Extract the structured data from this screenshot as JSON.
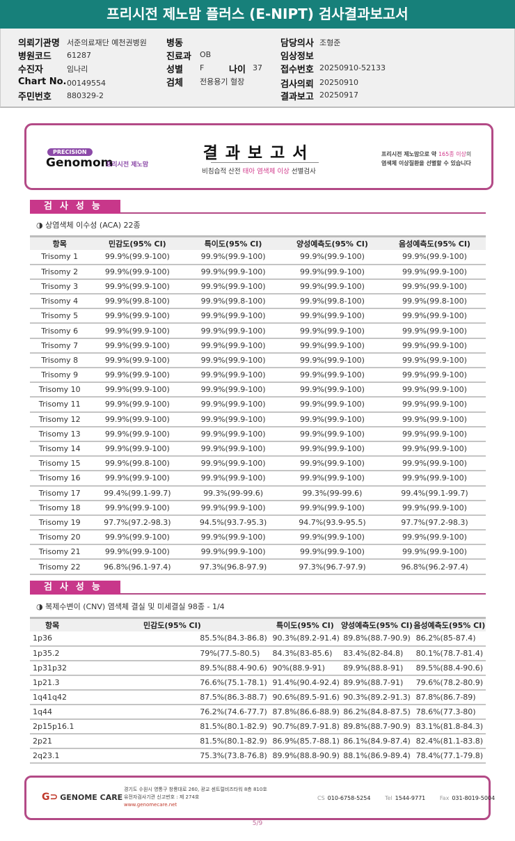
{
  "title": "프리시전 제노맘 플러스 (E-NIPT) 검사결과보고서",
  "info": {
    "hospital_label": "의뢰기관명",
    "hospital": "서준의료재단 예천권병원",
    "code_label": "병원코드",
    "code": "61287",
    "patient_label": "수진자",
    "patient": "임나리",
    "chart_label": "Chart No.",
    "chart": "00149554",
    "rrn_label": "주민번호",
    "rrn": "880329-2",
    "ward_label": "병동",
    "ward": "",
    "dept_label": "진료과",
    "dept": "OB",
    "sex_label": "성별",
    "sex": "F",
    "age_label": "나이",
    "age": "37",
    "specimen_label": "검체",
    "specimen": "전용용기 혈장",
    "doctor_label": "담당의사",
    "doctor": "조형준",
    "clinical_label": "임상정보",
    "clinical": "",
    "receipt_label": "접수번호",
    "receipt": "20250910-52133",
    "request_label": "검사의뢰",
    "request": "20250910",
    "report_label": "결과보고",
    "report": "20250917"
  },
  "banner": {
    "precision": "PRECISION",
    "brand": "Genomom",
    "brand_kr": "프리시전 제노맘",
    "title": "결과보고서",
    "sub_a": "비침습적 산전 ",
    "sub_b": "태아 염색체 이상",
    "sub_c": " 선별검사",
    "right_a": "프리시전 제노맘으로 약 ",
    "right_b": "165종 이상",
    "right_c": "의",
    "right_d": "염색체 이상질환을 선별할 수 있습니다"
  },
  "colors": {
    "teal": "#17807a",
    "magenta": "#b34a86",
    "pink": "#c8378a"
  },
  "section1": {
    "tab": "검사성능",
    "subtitle": "◑ 상염색체 이수성 (ACA) 22종",
    "headers": [
      "항목",
      "민감도(95% CI)",
      "특이도(95% CI)",
      "양성예측도(95% CI)",
      "음성예측도(95% CI)"
    ],
    "rows": [
      [
        "Trisomy 1",
        "99.9%(99.9-100)",
        "99.9%(99.9-100)",
        "99.9%(99.9-100)",
        "99.9%(99.9-100)"
      ],
      [
        "Trisomy 2",
        "99.9%(99.9-100)",
        "99.9%(99.9-100)",
        "99.9%(99.9-100)",
        "99.9%(99.9-100)"
      ],
      [
        "Trisomy 3",
        "99.9%(99.9-100)",
        "99.9%(99.9-100)",
        "99.9%(99.9-100)",
        "99.9%(99.9-100)"
      ],
      [
        "Trisomy 4",
        "99.9%(99.8-100)",
        "99.9%(99.8-100)",
        "99.9%(99.8-100)",
        "99.9%(99.8-100)"
      ],
      [
        "Trisomy 5",
        "99.9%(99.9-100)",
        "99.9%(99.9-100)",
        "99.9%(99.9-100)",
        "99.9%(99.9-100)"
      ],
      [
        "Trisomy 6",
        "99.9%(99.9-100)",
        "99.9%(99.9-100)",
        "99.9%(99.9-100)",
        "99.9%(99.9-100)"
      ],
      [
        "Trisomy 7",
        "99.9%(99.9-100)",
        "99.9%(99.9-100)",
        "99.9%(99.9-100)",
        "99.9%(99.9-100)"
      ],
      [
        "Trisomy 8",
        "99.9%(99.9-100)",
        "99.9%(99.9-100)",
        "99.9%(99.9-100)",
        "99.9%(99.9-100)"
      ],
      [
        "Trisomy 9",
        "99.9%(99.9-100)",
        "99.9%(99.9-100)",
        "99.9%(99.9-100)",
        "99.9%(99.9-100)"
      ],
      [
        "Trisomy 10",
        "99.9%(99.9-100)",
        "99.9%(99.9-100)",
        "99.9%(99.9-100)",
        "99.9%(99.9-100)"
      ],
      [
        "Trisomy 11",
        "99.9%(99.9-100)",
        "99.9%(99.9-100)",
        "99.9%(99.9-100)",
        "99.9%(99.9-100)"
      ],
      [
        "Trisomy 12",
        "99.9%(99.9-100)",
        "99.9%(99.9-100)",
        "99.9%(99.9-100)",
        "99.9%(99.9-100)"
      ],
      [
        "Trisomy 13",
        "99.9%(99.9-100)",
        "99.9%(99.9-100)",
        "99.9%(99.9-100)",
        "99.9%(99.9-100)"
      ],
      [
        "Trisomy 14",
        "99.9%(99.9-100)",
        "99.9%(99.9-100)",
        "99.9%(99.9-100)",
        "99.9%(99.9-100)"
      ],
      [
        "Trisomy 15",
        "99.9%(99.8-100)",
        "99.9%(99.9-100)",
        "99.9%(99.9-100)",
        "99.9%(99.9-100)"
      ],
      [
        "Trisomy 16",
        "99.9%(99.9-100)",
        "99.9%(99.9-100)",
        "99.9%(99.9-100)",
        "99.9%(99.9-100)"
      ],
      [
        "Trisomy 17",
        "99.4%(99.1-99.7)",
        "99.3%(99-99.6)",
        "99.3%(99-99.6)",
        "99.4%(99.1-99.7)"
      ],
      [
        "Trisomy 18",
        "99.9%(99.9-100)",
        "99.9%(99.9-100)",
        "99.9%(99.9-100)",
        "99.9%(99.9-100)"
      ],
      [
        "Trisomy 19",
        "97.7%(97.2-98.3)",
        "94.5%(93.7-95.3)",
        "94.7%(93.9-95.5)",
        "97.7%(97.2-98.3)"
      ],
      [
        "Trisomy 20",
        "99.9%(99.9-100)",
        "99.9%(99.9-100)",
        "99.9%(99.9-100)",
        "99.9%(99.9-100)"
      ],
      [
        "Trisomy 21",
        "99.9%(99.9-100)",
        "99.9%(99.9-100)",
        "99.9%(99.9-100)",
        "99.9%(99.9-100)"
      ],
      [
        "Trisomy 22",
        "96.8%(96.1-97.4)",
        "97.3%(96.8-97.9)",
        "97.3%(96.7-97.9)",
        "96.8%(96.2-97.4)"
      ]
    ]
  },
  "section2": {
    "tab": "검사성능",
    "subtitle": "◑ 복제수변이 (CNV) 염색체 결실 및 미세결실 98종 - 1/4",
    "headers": [
      "항목",
      "민감도(95% CI)",
      "특이도(95% CI)",
      "양성예측도(95% CI)",
      "음성예측도(95% CI)"
    ],
    "rows": [
      [
        "1p36",
        "85.5%(84.3-86.8)",
        "90.3%(89.2-91.4)",
        "89.8%(88.7-90.9)",
        "86.2%(85-87.4)"
      ],
      [
        "1p35.2",
        "79%(77.5-80.5)",
        "84.3%(83-85.6)",
        "83.4%(82-84.8)",
        "80.1%(78.7-81.4)"
      ],
      [
        "1p31p32",
        "89.5%(88.4-90.6)",
        "90%(88.9-91)",
        "89.9%(88.8-91)",
        "89.5%(88.4-90.6)"
      ],
      [
        "1p21.3",
        "76.6%(75.1-78.1)",
        "91.4%(90.4-92.4)",
        "89.9%(88.7-91)",
        "79.6%(78.2-80.9)"
      ],
      [
        "1q41q42",
        "87.5%(86.3-88.7)",
        "90.6%(89.5-91.6)",
        "90.3%(89.2-91.3)",
        "87.8%(86.7-89)"
      ],
      [
        "1q44",
        "76.2%(74.6-77.7)",
        "87.8%(86.6-88.9)",
        "86.2%(84.8-87.5)",
        "78.6%(77.3-80)"
      ],
      [
        "2p15p16.1",
        "81.5%(80.1-82.9)",
        "90.7%(89.7-91.8)",
        "89.8%(88.7-90.9)",
        "83.1%(81.8-84.3)"
      ],
      [
        "2p21",
        "81.5%(80.1-82.9)",
        "86.9%(85.7-88.1)",
        "86.1%(84.9-87.4)",
        "82.4%(81.1-83.8)"
      ],
      [
        "2q23.1",
        "75.3%(73.8-76.8)",
        "89.9%(88.8-90.9)",
        "88.1%(86.9-89.4)",
        "78.4%(77.1-79.8)"
      ]
    ]
  },
  "footer": {
    "logo": "GENOME CARE",
    "address": "경기도 수원시 영통구 창룡대로 260, 광교 센트럴비즈타워 8층 810호",
    "license": "유전자검사기관 신고번호 : 제 274호",
    "website": "www.genomecare.net",
    "cs_label": "CS",
    "cs": "010-6758-5254",
    "tel_label": "Tel",
    "tel": "1544-9771",
    "fax_label": "Fax",
    "fax": "031-8019-5004"
  },
  "page": "5/9"
}
